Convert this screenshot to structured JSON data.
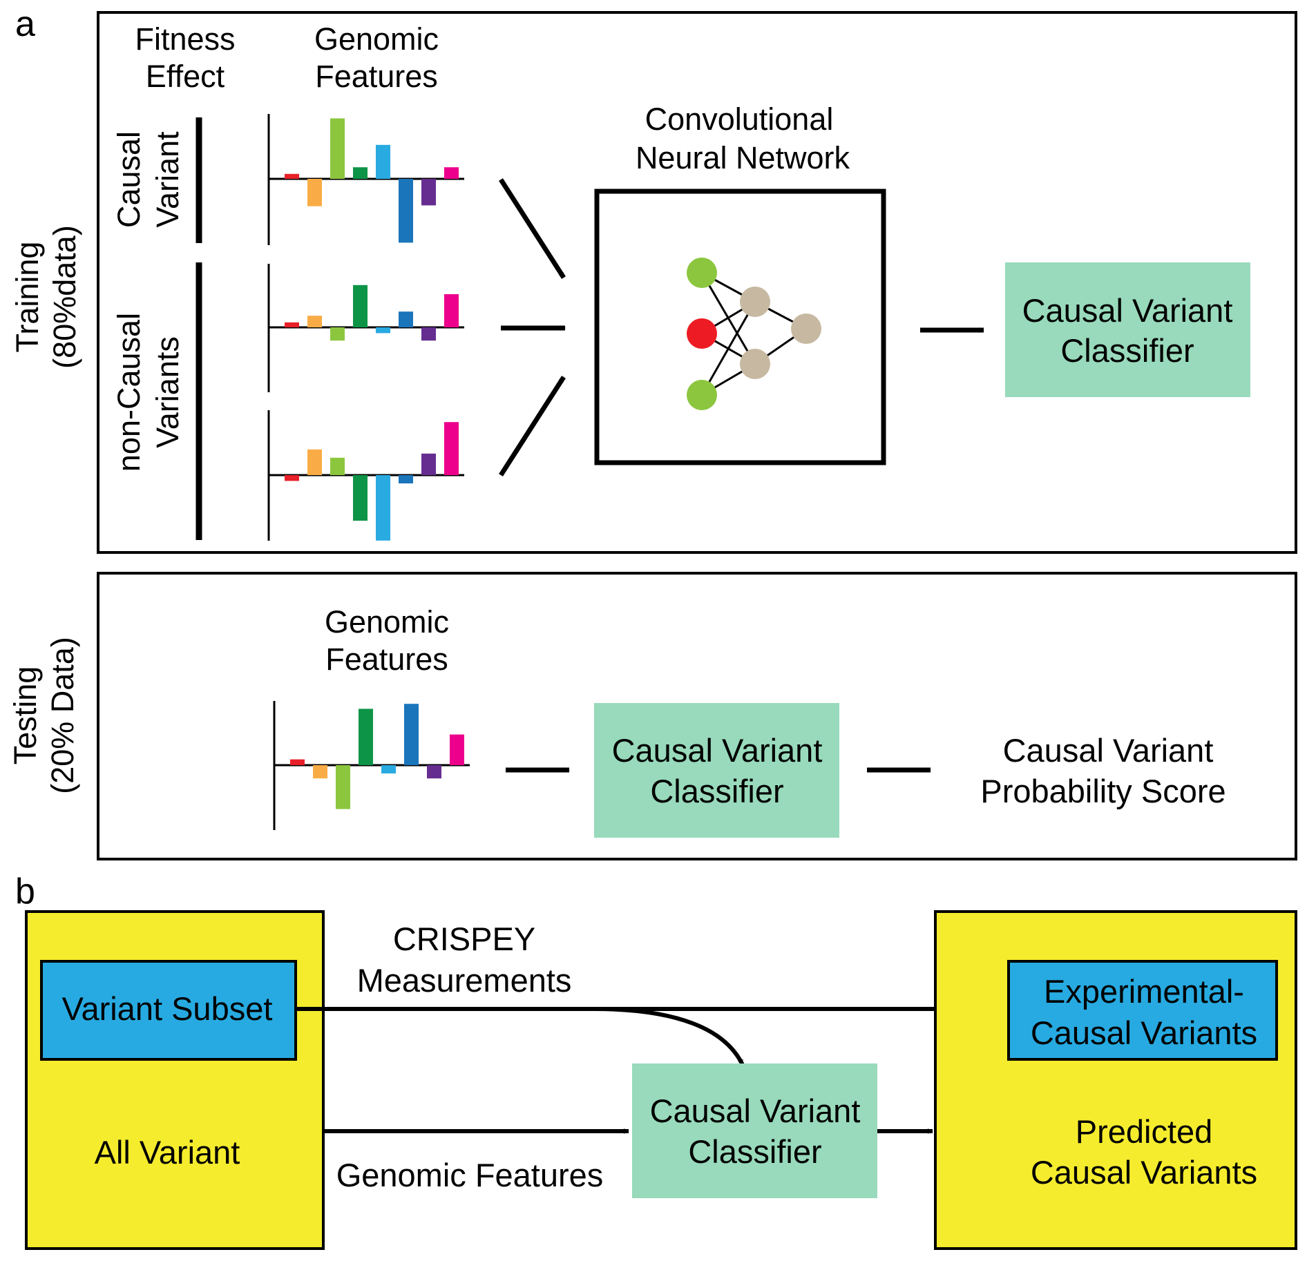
{
  "panel_a": {
    "label": "a",
    "training": {
      "side_label": [
        "Training",
        "(80%data)"
      ],
      "fitness_header": [
        "Fitness",
        "Effect"
      ],
      "features_header": [
        "Genomic",
        "Features"
      ],
      "causal_label": [
        "Causal",
        "Variant"
      ],
      "noncausal_label": [
        "non-Causal",
        "Variants"
      ],
      "cnn_title": [
        "Convolutional",
        "Neural Network"
      ],
      "classifier": [
        "Causal Variant",
        "Classifier"
      ]
    },
    "testing": {
      "side_label": [
        "Testing",
        "(20% Data)"
      ],
      "features_header": [
        "Genomic",
        "Features"
      ],
      "classifier": [
        "Causal Variant",
        "Classifier"
      ],
      "output": [
        "Causal Variant",
        "Probability Score"
      ]
    }
  },
  "panel_b": {
    "label": "b",
    "left_box": {
      "subset": "Variant Subset",
      "all": "All Variant"
    },
    "crispey": [
      "CRISPEY",
      "Measurements"
    ],
    "genomic_features": "Genomic Features",
    "classifier": [
      "Causal Variant",
      "Classifier"
    ],
    "right_box": {
      "experimental": [
        "Experimental-",
        "Causal Variants"
      ],
      "predicted": [
        "Predicted",
        "Causal Variants"
      ]
    }
  },
  "colors": {
    "red": "#e8202a",
    "orange": "#f9ac46",
    "lime": "#8cc63f",
    "green": "#0e9447",
    "sky": "#29aae1",
    "blue": "#1b75bb",
    "purple": "#662d91",
    "magenta": "#ec008c",
    "mint": "#98dabb",
    "yellow": "#f5ec2d",
    "cyan": "#27aae1",
    "node_green": "#8cc63f",
    "node_red": "#ed1c24",
    "node_tan": "#c7b9a1"
  },
  "bar_order": [
    "red",
    "orange",
    "lime",
    "green",
    "sky",
    "blue",
    "purple",
    "magenta"
  ],
  "bar_charts": [
    {
      "name": "causal-variant-bars",
      "values": [
        0.06,
        -0.33,
        0.73,
        0.14,
        0.41,
        -0.77,
        -0.32,
        0.14
      ]
    },
    {
      "name": "noncausal-bars-1",
      "values": [
        0.06,
        0.14,
        -0.16,
        0.51,
        -0.07,
        0.19,
        -0.16,
        0.4
      ]
    },
    {
      "name": "noncausal-bars-2",
      "values": [
        -0.07,
        0.31,
        0.21,
        -0.55,
        -0.79,
        -0.1,
        0.26,
        0.64
      ]
    },
    {
      "name": "testing-bars",
      "values": [
        0.07,
        -0.16,
        -0.53,
        0.68,
        -0.1,
        0.74,
        -0.16,
        0.37
      ]
    }
  ]
}
